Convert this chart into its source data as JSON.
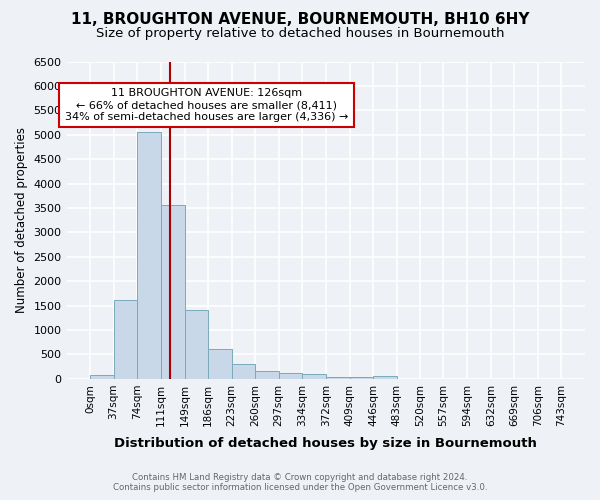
{
  "title_line1": "11, BROUGHTON AVENUE, BOURNEMOUTH, BH10 6HY",
  "title_line2": "Size of property relative to detached houses in Bournemouth",
  "xlabel": "Distribution of detached houses by size in Bournemouth",
  "ylabel": "Number of detached properties",
  "footer_line1": "Contains HM Land Registry data © Crown copyright and database right 2024.",
  "footer_line2": "Contains public sector information licensed under the Open Government Licence v3.0.",
  "bar_edges": [
    0,
    37,
    74,
    111,
    149,
    186,
    223,
    260,
    297,
    334,
    372,
    409,
    446,
    483,
    520,
    557,
    594,
    632,
    669,
    706,
    743
  ],
  "bar_heights": [
    75,
    1620,
    5060,
    3570,
    1410,
    610,
    300,
    155,
    130,
    95,
    45,
    30,
    55,
    0,
    0,
    0,
    0,
    0,
    0,
    0
  ],
  "bar_color": "#c8d8e8",
  "bar_edge_color": "#7aaabb",
  "vline_x": 126,
  "vline_color": "#aa0000",
  "annotation_text": "11 BROUGHTON AVENUE: 126sqm\n← 66% of detached houses are smaller (8,411)\n34% of semi-detached houses are larger (4,336) →",
  "annotation_box_color": "#ffffff",
  "annotation_box_edge_color": "#cc0000",
  "ylim": [
    0,
    6500
  ],
  "yticks": [
    0,
    500,
    1000,
    1500,
    2000,
    2500,
    3000,
    3500,
    4000,
    4500,
    5000,
    5500,
    6000,
    6500
  ],
  "background_color": "#eef2f7",
  "grid_color": "#ffffff",
  "title_fontsize": 11,
  "subtitle_fontsize": 9.5,
  "title_fontweight": "normal"
}
